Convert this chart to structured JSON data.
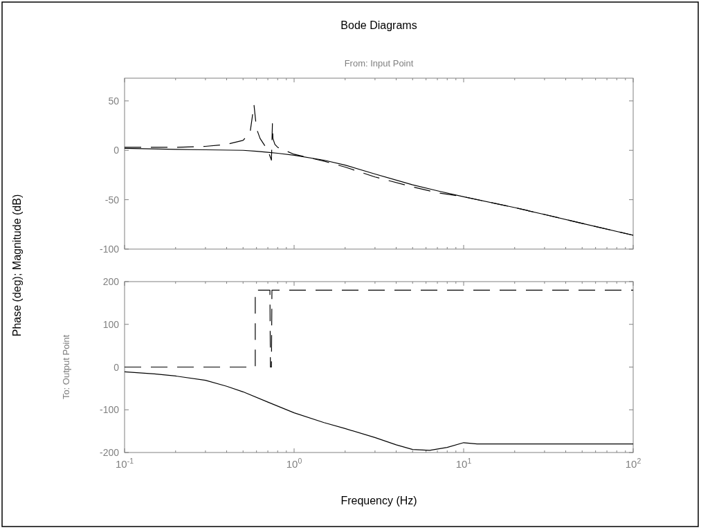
{
  "chart_data": [
    {
      "type": "line",
      "title": "Bode Diagrams",
      "subtitle": "From: Input Point",
      "ylabel": "Phase (deg); Magnitude (dB)",
      "xlim": [
        0.1,
        100
      ],
      "ylim": [
        -100,
        73
      ],
      "log": "x",
      "tick_labels": "y",
      "grid": false,
      "xticks": [
        {
          "value": 0.1,
          "label": null
        },
        {
          "value": 0.2,
          "label": null
        },
        {
          "value": 0.3,
          "label": null
        },
        {
          "value": 0.4,
          "label": null
        },
        {
          "value": 0.5,
          "label": null
        },
        {
          "value": 0.6,
          "label": null
        },
        {
          "value": 0.7,
          "label": null
        },
        {
          "value": 0.8,
          "label": null
        },
        {
          "value": 0.9,
          "label": null
        },
        {
          "value": 1,
          "label": null
        },
        {
          "value": 2,
          "label": null
        },
        {
          "value": 3,
          "label": null
        },
        {
          "value": 4,
          "label": null
        },
        {
          "value": 5,
          "label": null
        },
        {
          "value": 6,
          "label": null
        },
        {
          "value": 7,
          "label": null
        },
        {
          "value": 8,
          "label": null
        },
        {
          "value": 9,
          "label": null
        },
        {
          "value": 10,
          "label": null
        },
        {
          "value": 20,
          "label": null
        },
        {
          "value": 30,
          "label": null
        },
        {
          "value": 40,
          "label": null
        },
        {
          "value": 50,
          "label": null
        },
        {
          "value": 60,
          "label": null
        },
        {
          "value": 70,
          "label": null
        },
        {
          "value": 80,
          "label": null
        },
        {
          "value": 90,
          "label": null
        },
        {
          "value": 100,
          "label": null
        }
      ],
      "yticks": [
        -100,
        -50,
        0,
        50
      ],
      "series": [
        {
          "color": "#000000",
          "line_style": "solid",
          "x": [
            0.1,
            0.2,
            0.3,
            0.5,
            0.6,
            0.7,
            0.8,
            1,
            1.5,
            2,
            3,
            5,
            7,
            10,
            20,
            30,
            50,
            100
          ],
          "values": [
            2,
            1,
            0.5,
            0,
            -1,
            -2,
            -3,
            -5,
            -10,
            -15,
            -24,
            -35,
            -41,
            -47,
            -58,
            -65,
            -74,
            -86
          ]
        },
        {
          "color": "#000000",
          "line_style": "dashed",
          "x": [
            0.1,
            0.2,
            0.3,
            0.4,
            0.5,
            0.55,
            0.58,
            0.6,
            0.63,
            0.67,
            0.7,
            0.735,
            0.745,
            0.75,
            0.77,
            0.8,
            0.85,
            1,
            1.5,
            2,
            3,
            5,
            7,
            10,
            20,
            30,
            50,
            100
          ],
          "values": [
            3,
            3,
            4,
            6,
            10,
            18,
            46,
            22,
            12,
            5,
            0,
            -10,
            27,
            12,
            6,
            3,
            1,
            -4,
            -11,
            -17,
            -27,
            -37,
            -43,
            -47,
            -58,
            -65,
            -74,
            -86
          ]
        }
      ]
    },
    {
      "type": "line",
      "xlabel": "Frequency (Hz)",
      "ylabel": "To: Output Point",
      "xlim": [
        0.1,
        100
      ],
      "ylim": [
        -200,
        200
      ],
      "log": "x",
      "grid": false,
      "xticks": [
        {
          "value": 0.1,
          "label": "10$^{-1}$"
        },
        {
          "value": 0.2,
          "label": null
        },
        {
          "value": 0.3,
          "label": null
        },
        {
          "value": 0.4,
          "label": null
        },
        {
          "value": 0.5,
          "label": null
        },
        {
          "value": 0.6,
          "label": null
        },
        {
          "value": 0.7,
          "label": null
        },
        {
          "value": 0.8,
          "label": null
        },
        {
          "value": 0.9,
          "label": null
        },
        {
          "value": 1,
          "label": "10$^{0}$"
        },
        {
          "value": 2,
          "label": null
        },
        {
          "value": 3,
          "label": null
        },
        {
          "value": 4,
          "label": null
        },
        {
          "value": 5,
          "label": null
        },
        {
          "value": 6,
          "label": null
        },
        {
          "value": 7,
          "label": null
        },
        {
          "value": 8,
          "label": null
        },
        {
          "value": 9,
          "label": null
        },
        {
          "value": 10,
          "label": "10$^{1}$"
        },
        {
          "value": 20,
          "label": null
        },
        {
          "value": 30,
          "label": null
        },
        {
          "value": 40,
          "label": null
        },
        {
          "value": 50,
          "label": null
        },
        {
          "value": 60,
          "label": null
        },
        {
          "value": 70,
          "label": null
        },
        {
          "value": 80,
          "label": null
        },
        {
          "value": 90,
          "label": null
        },
        {
          "value": 100,
          "label": "10$^{2}$"
        }
      ],
      "yticks": [
        -200,
        -100,
        0,
        100,
        200
      ],
      "series": [
        {
          "color": "#000000",
          "line_style": "solid",
          "x": [
            0.1,
            0.15,
            0.2,
            0.3,
            0.4,
            0.5,
            0.7,
            1,
            1.5,
            2,
            3,
            4,
            5,
            6.3,
            8,
            10,
            12,
            20,
            50,
            100
          ],
          "values": [
            -11,
            -16,
            -21,
            -31,
            -45,
            -58,
            -82,
            -107,
            -130,
            -144,
            -165,
            -182,
            -193,
            -195,
            -188,
            -177,
            -180,
            -180,
            -180,
            -180
          ]
        },
        {
          "color": "#000000",
          "line_style": "dashed",
          "x": [
            0.1,
            0.59,
            0.59,
            0.72,
            0.725,
            0.735,
            0.74,
            100
          ],
          "values": [
            0,
            0,
            180,
            180,
            0,
            0,
            180,
            180
          ]
        }
      ]
    }
  ]
}
